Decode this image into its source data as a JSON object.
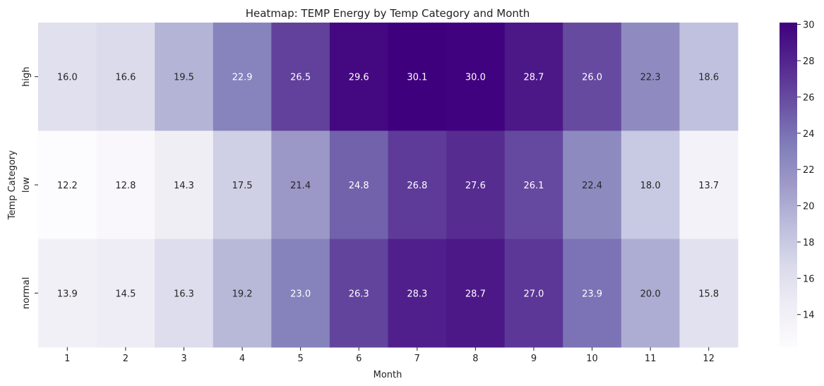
{
  "chart_data": {
    "type": "heatmap",
    "title": "Heatmap: TEMP Energy by Temp Category and Month",
    "xlabel": "Month",
    "ylabel": "Temp Category",
    "x": [
      "1",
      "2",
      "3",
      "4",
      "5",
      "6",
      "7",
      "8",
      "9",
      "10",
      "11",
      "12"
    ],
    "y": [
      "high",
      "low",
      "normal"
    ],
    "values": [
      [
        16.0,
        16.6,
        19.5,
        22.9,
        26.5,
        29.6,
        30.1,
        30.0,
        28.7,
        26.0,
        22.3,
        18.6
      ],
      [
        12.2,
        12.8,
        14.3,
        17.5,
        21.4,
        24.8,
        26.8,
        27.6,
        26.1,
        22.4,
        18.0,
        13.7
      ],
      [
        13.9,
        14.5,
        16.3,
        19.2,
        23.0,
        26.3,
        28.3,
        28.7,
        27.0,
        23.9,
        20.0,
        15.8
      ]
    ],
    "value_format": "0.0",
    "colormap": "Purples",
    "colorbar": {
      "range": [
        12.2,
        30.1
      ],
      "ticks": [
        14,
        16,
        18,
        20,
        22,
        24,
        26,
        28,
        30
      ]
    },
    "annotations_shown": true
  }
}
